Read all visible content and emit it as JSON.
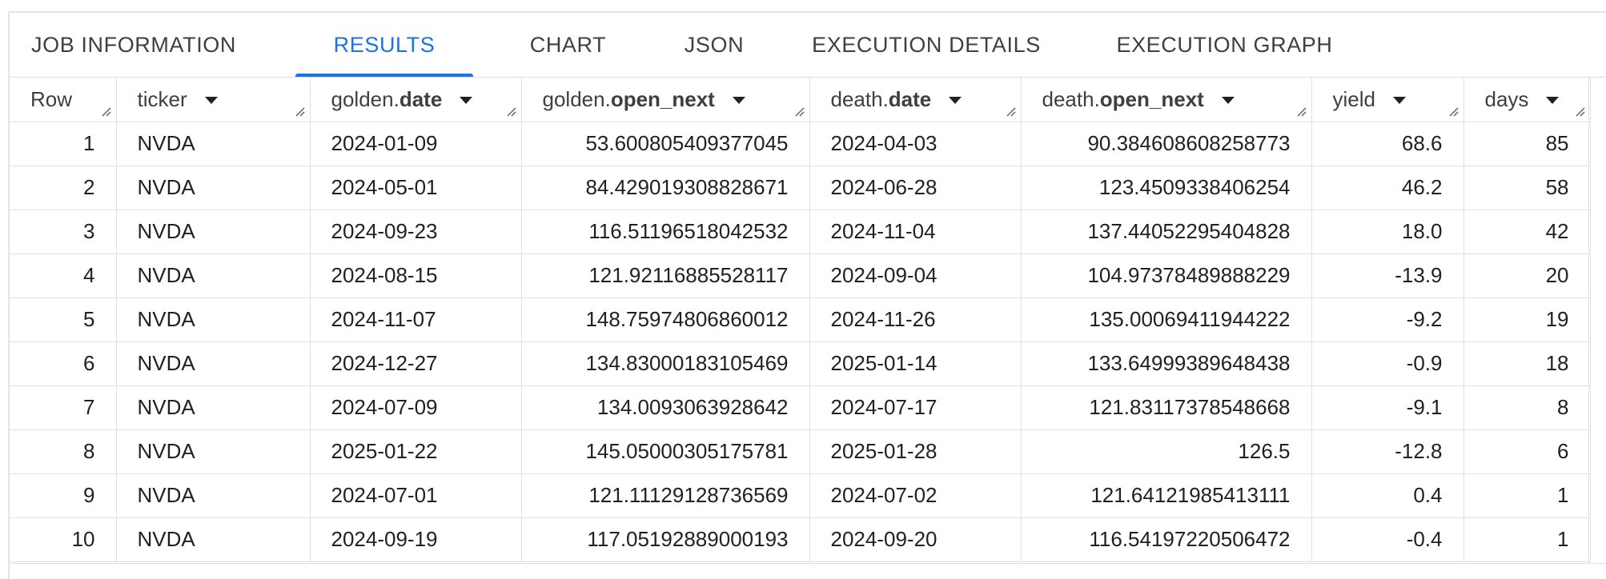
{
  "tabs": [
    {
      "label": "JOB INFORMATION",
      "active": false
    },
    {
      "label": "RESULTS",
      "active": true
    },
    {
      "label": "CHART",
      "active": false
    },
    {
      "label": "JSON",
      "active": false
    },
    {
      "label": "EXECUTION DETAILS",
      "active": false
    },
    {
      "label": "EXECUTION GRAPH",
      "active": false
    }
  ],
  "table": {
    "columns": [
      {
        "prefix": "",
        "name": "Row",
        "sortable": false
      },
      {
        "prefix": "",
        "name": "ticker",
        "sortable": true
      },
      {
        "prefix": "golden.",
        "name": "date",
        "sortable": true
      },
      {
        "prefix": "golden.",
        "name": "open_next",
        "sortable": true
      },
      {
        "prefix": "death.",
        "name": "date",
        "sortable": true
      },
      {
        "prefix": "death.",
        "name": "open_next",
        "sortable": true
      },
      {
        "prefix": "",
        "name": "yield",
        "sortable": true
      },
      {
        "prefix": "",
        "name": "days",
        "sortable": true
      }
    ],
    "rows": [
      [
        "1",
        "NVDA",
        "2024-01-09",
        "53.600805409377045",
        "2024-04-03",
        "90.384608608258773",
        "68.6",
        "85"
      ],
      [
        "2",
        "NVDA",
        "2024-05-01",
        "84.429019308828671",
        "2024-06-28",
        "123.4509338406254",
        "46.2",
        "58"
      ],
      [
        "3",
        "NVDA",
        "2024-09-23",
        "116.51196518042532",
        "2024-11-04",
        "137.44052295404828",
        "18.0",
        "42"
      ],
      [
        "4",
        "NVDA",
        "2024-08-15",
        "121.92116885528117",
        "2024-09-04",
        "104.97378489888229",
        "-13.9",
        "20"
      ],
      [
        "5",
        "NVDA",
        "2024-11-07",
        "148.75974806860012",
        "2024-11-26",
        "135.00069411944222",
        "-9.2",
        "19"
      ],
      [
        "6",
        "NVDA",
        "2024-12-27",
        "134.83000183105469",
        "2025-01-14",
        "133.64999389648438",
        "-0.9",
        "18"
      ],
      [
        "7",
        "NVDA",
        "2024-07-09",
        "134.0093063928642",
        "2024-07-17",
        "121.83117378548668",
        "-9.1",
        "8"
      ],
      [
        "8",
        "NVDA",
        "2025-01-22",
        "145.05000305175781",
        "2025-01-28",
        "126.5",
        "-12.8",
        "6"
      ],
      [
        "9",
        "NVDA",
        "2024-07-01",
        "121.11129128736569",
        "2024-07-02",
        "121.64121985413111",
        "0.4",
        "1"
      ],
      [
        "10",
        "NVDA",
        "2024-09-19",
        "117.05192889000193",
        "2024-09-20",
        "116.54197220506472",
        "-0.4",
        "1"
      ]
    ]
  },
  "colors": {
    "accent": "#1a73e8",
    "tab_text": "#3c4043",
    "grid_line": "#e0e0e0"
  }
}
